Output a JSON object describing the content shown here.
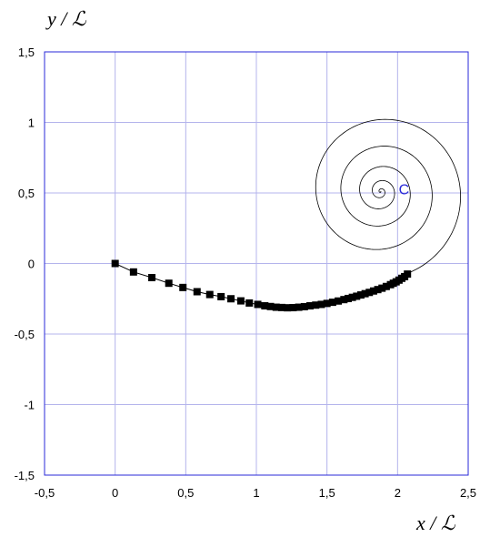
{
  "chart_data": {
    "type": "scatter",
    "title": "",
    "xlabel": "x / ℒ",
    "ylabel": "y / ℒ",
    "xlim": [
      -0.5,
      2.5
    ],
    "ylim": [
      -1.5,
      1.5
    ],
    "grid": true,
    "xticks": [
      "-0,5",
      "0",
      "0,5",
      "1",
      "1,5",
      "2",
      "2,5"
    ],
    "yticks": [
      "1,5",
      "1",
      "0,5",
      "0",
      "-0,5",
      "-1",
      "-1,5"
    ],
    "annotation": {
      "text": "C",
      "x": 2.06,
      "y": 0.53
    },
    "spiral": {
      "center": [
        1.88,
        0.51
      ],
      "end": [
        2.07,
        -0.07
      ],
      "turns": 5.5
    },
    "series": [
      {
        "marker": "square",
        "x": [
          0,
          0.13,
          0.26,
          0.38,
          0.48,
          0.58,
          0.67,
          0.75,
          0.82,
          0.89,
          0.95,
          1.01,
          1.06,
          1.1,
          1.14,
          1.18,
          1.22,
          1.26,
          1.3,
          1.34,
          1.38,
          1.42,
          1.46,
          1.5,
          1.54,
          1.58,
          1.62,
          1.65,
          1.68,
          1.71,
          1.74,
          1.77,
          1.8,
          1.83,
          1.86,
          1.89,
          1.92,
          1.95,
          1.97,
          1.99,
          2.01,
          2.03,
          2.05,
          2.07
        ],
        "y": [
          0,
          -0.06,
          -0.1,
          -0.14,
          -0.17,
          -0.2,
          -0.22,
          -0.235,
          -0.25,
          -0.265,
          -0.28,
          -0.29,
          -0.3,
          -0.305,
          -0.31,
          -0.312,
          -0.314,
          -0.313,
          -0.31,
          -0.306,
          -0.3,
          -0.295,
          -0.29,
          -0.283,
          -0.275,
          -0.266,
          -0.256,
          -0.248,
          -0.24,
          -0.232,
          -0.223,
          -0.214,
          -0.205,
          -0.195,
          -0.185,
          -0.175,
          -0.163,
          -0.15,
          -0.14,
          -0.13,
          -0.118,
          -0.105,
          -0.093,
          -0.075
        ]
      }
    ]
  }
}
